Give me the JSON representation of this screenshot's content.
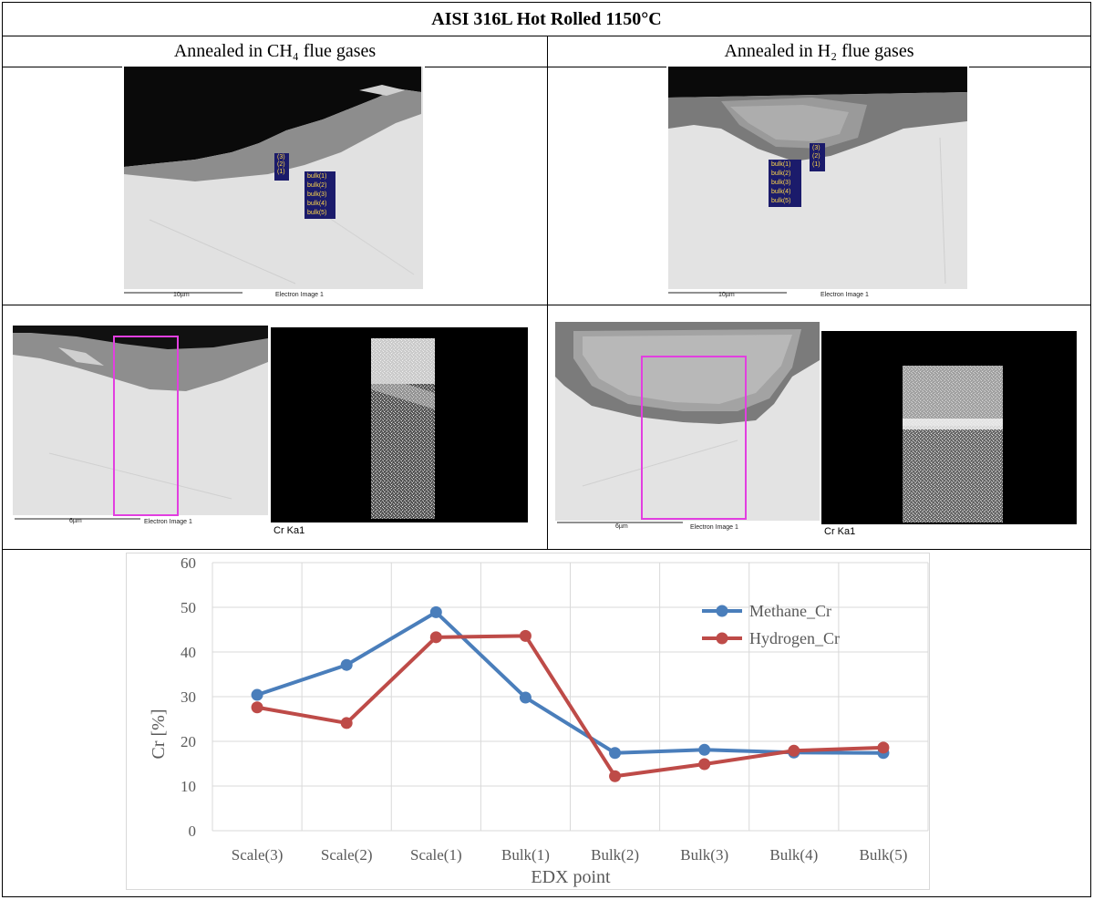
{
  "figure": {
    "title": "AISI 316L Hot Rolled 1150°C",
    "left_col_header": "Annealed in CH₄ flue gases",
    "right_col_header": "Annealed in H₂ flue gases"
  },
  "sem_top_left": {
    "scale_label": "10µm",
    "image_label": "Electron Image 1",
    "scale_points": [
      "(3)",
      "(2)",
      "(1)"
    ],
    "bulk_points": [
      "bulk(1)",
      "bulk(2)",
      "bulk(3)",
      "bulk(4)",
      "bulk(5)"
    ]
  },
  "sem_top_right": {
    "scale_label": "10µm",
    "image_label": "Electron Image 1",
    "scale_points": [
      "(3)",
      "(2)",
      "(1)"
    ],
    "bulk_points": [
      "bulk(1)",
      "bulk(2)",
      "bulk(3)",
      "bulk(4)",
      "bulk(5)"
    ]
  },
  "sem_mid_left": {
    "scale_label": "6µm",
    "image_label": "Electron Image 1",
    "map_label": "Cr Ka1"
  },
  "sem_mid_right": {
    "scale_label": "6µm",
    "image_label": "Electron Image 1",
    "map_label": "Cr Ka1"
  },
  "chart_data": {
    "type": "line",
    "categories": [
      "Scale(3)",
      "Scale(2)",
      "Scale(1)",
      "Bulk(1)",
      "Bulk(2)",
      "Bulk(3)",
      "Bulk(4)",
      "Bulk(5)"
    ],
    "series": [
      {
        "name": "Methane_Cr",
        "color": "#4a7ebb",
        "values": [
          30.4,
          37.1,
          48.9,
          29.8,
          17.4,
          18.1,
          17.5,
          17.4
        ]
      },
      {
        "name": "Hydrogen_Cr",
        "color": "#be4b48",
        "values": [
          27.6,
          24.1,
          43.3,
          43.6,
          12.2,
          14.9,
          17.9,
          18.6
        ]
      }
    ],
    "xlabel": "EDX point",
    "ylabel": "Cr [%]",
    "ylim": [
      0,
      60
    ],
    "yticks": [
      "0",
      "10",
      "20",
      "30",
      "40",
      "50",
      "60"
    ],
    "grid": true,
    "legend_position": "top-right"
  }
}
